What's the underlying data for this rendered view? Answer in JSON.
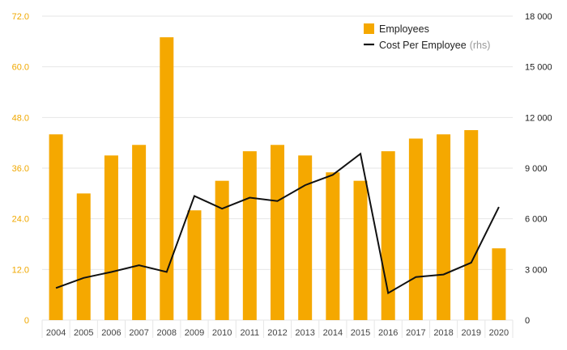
{
  "chart_data": {
    "type": "bar",
    "categories": [
      "2004",
      "2005",
      "2006",
      "2007",
      "2008",
      "2009",
      "2010",
      "2011",
      "2012",
      "2013",
      "2014",
      "2015",
      "2016",
      "2017",
      "2018",
      "2019",
      "2020"
    ],
    "series": [
      {
        "name": "Employees",
        "type": "bar",
        "axis": "left",
        "color": "#f5a800",
        "values": [
          44.0,
          30.0,
          39.0,
          41.5,
          67.0,
          26.0,
          33.0,
          40.0,
          41.5,
          39.0,
          35.0,
          33.0,
          40.0,
          43.0,
          44.0,
          45.0,
          17.0
        ]
      },
      {
        "name": "Cost Per Employee",
        "type": "line",
        "axis": "right",
        "color": "#111111",
        "values": [
          1900,
          2500,
          2850,
          3250,
          2850,
          7350,
          6600,
          7250,
          7050,
          7990,
          8600,
          9850,
          1600,
          2550,
          2700,
          3400,
          6700
        ]
      }
    ],
    "legend": {
      "position": "top-right",
      "items": [
        {
          "label": "Employees",
          "note": ""
        },
        {
          "label": "Cost Per Employee",
          "note": "(rhs)"
        }
      ]
    },
    "y_left": {
      "ylim": [
        0,
        72
      ],
      "ticks": [
        "0",
        "12.0",
        "24.0",
        "36.0",
        "48.0",
        "60.0",
        "72.0"
      ],
      "color": "#f0a800"
    },
    "y_right": {
      "ylim": [
        0,
        18000
      ],
      "ticks": [
        "0",
        "3 000",
        "6 000",
        "9 000",
        "12 000",
        "15 000",
        "18 000"
      ],
      "color": "#222222"
    },
    "grid": true,
    "title": "",
    "xlabel": "",
    "ylabel": ""
  }
}
